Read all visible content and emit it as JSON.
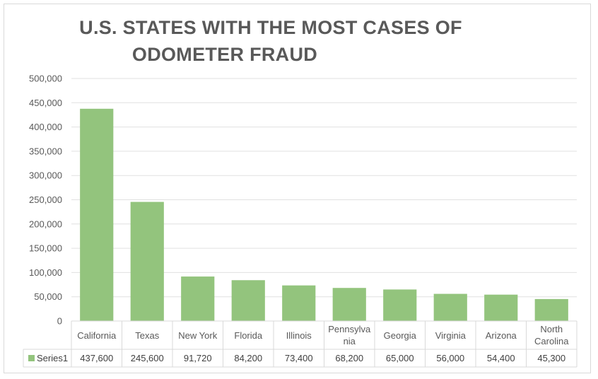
{
  "chart_data": {
    "type": "bar",
    "title_lines": [
      "U.S. STATES WITH THE MOST CASES OF",
      "ODOMETER FRAUD"
    ],
    "categories_display": [
      [
        "California"
      ],
      [
        "Texas"
      ],
      [
        "New York"
      ],
      [
        "Florida"
      ],
      [
        "Illinois"
      ],
      [
        "Pennsylva",
        "nia"
      ],
      [
        "Georgia"
      ],
      [
        "Virginia"
      ],
      [
        "Arizona"
      ],
      [
        "North",
        "Carolina"
      ]
    ],
    "series": [
      {
        "name": "Series1",
        "values": [
          437600,
          245600,
          91720,
          84200,
          73400,
          68200,
          65000,
          56000,
          54400,
          45300
        ],
        "value_labels": [
          "437,600",
          "245,600",
          "91,720",
          "84,200",
          "73,400",
          "68,200",
          "65,000",
          "56,000",
          "54,400",
          "45,300"
        ]
      }
    ],
    "ylim": [
      0,
      500000
    ],
    "yticks": [
      "0",
      "50,000",
      "100,000",
      "150,000",
      "200,000",
      "250,000",
      "300,000",
      "350,000",
      "400,000",
      "450,000",
      "500,000"
    ],
    "grid": true,
    "legend": "data-table",
    "colors": {
      "bar": "#93c47d",
      "grid": "#e0e0e0",
      "text": "#595959"
    }
  }
}
